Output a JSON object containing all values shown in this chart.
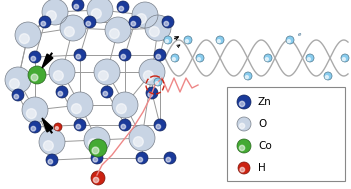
{
  "bg_color": "#ffffff",
  "zn_color": "#1a3a9a",
  "o_color": "#c8d4e4",
  "co_color": "#44aa33",
  "h_color": "#cc2211",
  "bond_color": "#999999",
  "wave_color": "#aaaaaa",
  "electron_color": "#88ccee",
  "zigzag_color": "#ee8888",
  "dashed_circle_color": "#cc2211",
  "legend_labels": [
    "Zn",
    "O",
    "Co",
    "H"
  ],
  "legend_colors": [
    "#1a3a9a",
    "#c8d4e4",
    "#44aa33",
    "#cc2211"
  ]
}
